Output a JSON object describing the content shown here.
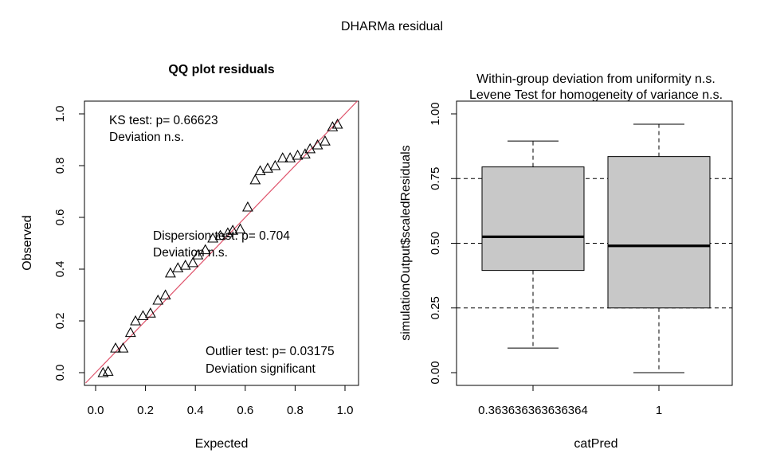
{
  "page_title": "DHARMa residual",
  "chart_data": [
    {
      "type": "scatter",
      "title": "QQ plot residuals",
      "xlabel": "Expected",
      "ylabel": "Observed",
      "xlim": [
        0,
        1
      ],
      "ylim": [
        0,
        1
      ],
      "xticks": [
        "0.0",
        "0.2",
        "0.4",
        "0.6",
        "0.8",
        "1.0"
      ],
      "yticks": [
        "0.0",
        "0.2",
        "0.4",
        "0.6",
        "0.8",
        "1.0"
      ],
      "reference_line": {
        "slope": 1,
        "intercept": 0,
        "color": "#df536b"
      },
      "marker": "open-triangle",
      "points": [
        [
          0.03,
          0.0
        ],
        [
          0.05,
          0.005
        ],
        [
          0.08,
          0.095
        ],
        [
          0.11,
          0.095
        ],
        [
          0.14,
          0.155
        ],
        [
          0.16,
          0.2
        ],
        [
          0.19,
          0.22
        ],
        [
          0.22,
          0.23
        ],
        [
          0.25,
          0.28
        ],
        [
          0.28,
          0.3
        ],
        [
          0.3,
          0.385
        ],
        [
          0.33,
          0.405
        ],
        [
          0.36,
          0.415
        ],
        [
          0.39,
          0.425
        ],
        [
          0.41,
          0.455
        ],
        [
          0.44,
          0.475
        ],
        [
          0.47,
          0.52
        ],
        [
          0.5,
          0.53
        ],
        [
          0.53,
          0.54
        ],
        [
          0.55,
          0.55
        ],
        [
          0.58,
          0.555
        ],
        [
          0.61,
          0.64
        ],
        [
          0.64,
          0.745
        ],
        [
          0.66,
          0.78
        ],
        [
          0.69,
          0.79
        ],
        [
          0.72,
          0.8
        ],
        [
          0.75,
          0.83
        ],
        [
          0.78,
          0.83
        ],
        [
          0.81,
          0.84
        ],
        [
          0.84,
          0.845
        ],
        [
          0.86,
          0.865
        ],
        [
          0.89,
          0.88
        ],
        [
          0.92,
          0.895
        ],
        [
          0.95,
          0.95
        ],
        [
          0.97,
          0.96
        ]
      ],
      "annotations": {
        "ks": {
          "line1": "KS test: p= 0.66623",
          "line2": "Deviation  n.s."
        },
        "dispersion": {
          "line1": "Dispersion test: p= 0.704",
          "line2": "Deviation  n.s."
        },
        "outlier": {
          "line1": "Outlier test: p= 0.03175",
          "line2": "Deviation  significant",
          "color": "#e8112d"
        }
      }
    },
    {
      "type": "boxplot",
      "title_line1": "Within-group deviation from uniformity n.s.",
      "title_line2": "Levene Test for homogeneity of variance n.s.",
      "xlabel": "catPred",
      "ylabel": "simulationOutput$scaledResiduals",
      "ylim": [
        0,
        1
      ],
      "yticks": [
        "0.00",
        "0.25",
        "0.50",
        "0.75",
        "1.00"
      ],
      "hlines": [
        0.25,
        0.5,
        0.75
      ],
      "box_fill": "#c8c8c8",
      "categories": [
        "0.363636363636364",
        "1"
      ],
      "boxes": [
        {
          "min": 0.095,
          "q1": 0.395,
          "median": 0.525,
          "q3": 0.795,
          "max": 0.895
        },
        {
          "min": 0.0,
          "q1": 0.25,
          "median": 0.49,
          "q3": 0.835,
          "max": 0.96
        }
      ]
    }
  ]
}
